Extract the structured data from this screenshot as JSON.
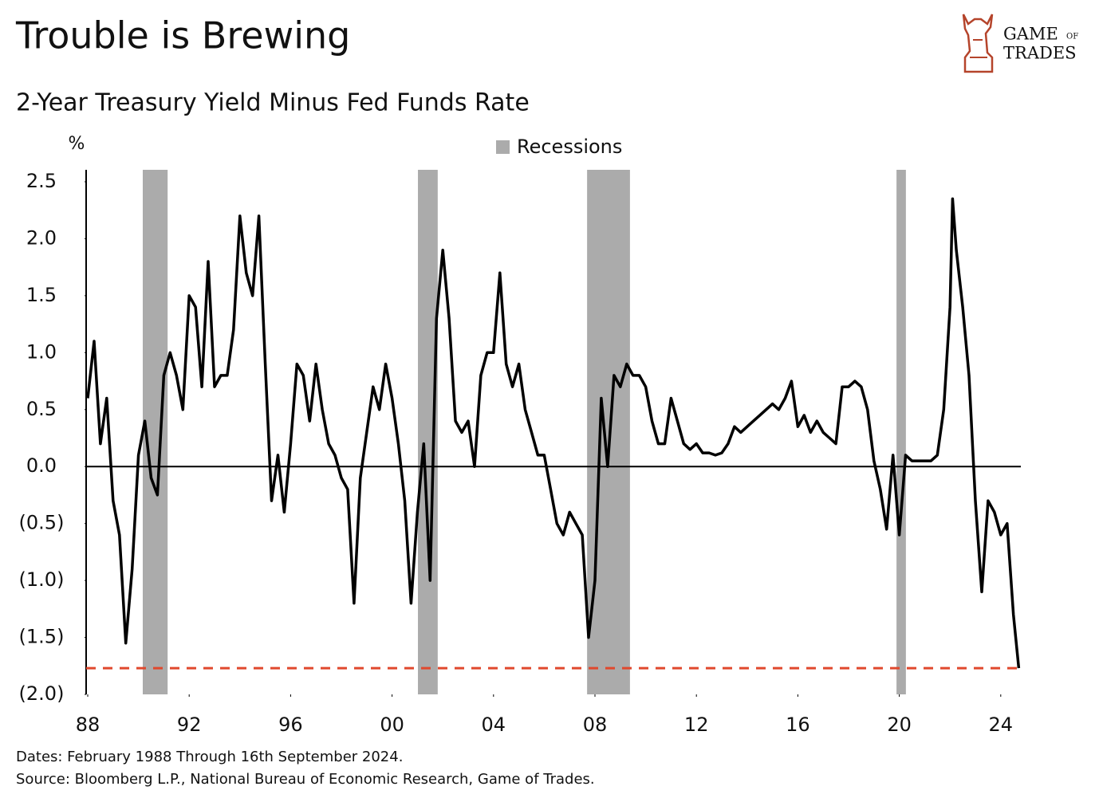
{
  "chart_data": {
    "type": "line",
    "title": "Trouble is Brewing",
    "subtitle": "2-Year Treasury Yield Minus Fed Funds Rate",
    "y_unit": "%",
    "legend": "Recessions",
    "recession_color": "#ababab",
    "recessions": [
      [
        1990.17,
        1991.15
      ],
      [
        2001.02,
        2001.8
      ],
      [
        2007.69,
        2009.38
      ],
      [
        2019.89,
        2020.26
      ]
    ],
    "reference_line": {
      "value": -1.77,
      "color": "#e0482d"
    },
    "notes": [
      "Dates: February 1988 Through 16th September 2024.",
      "Source: Bloomberg L.P., National Bureau of Economic Research, Game of Trades."
    ],
    "logo": [
      "GAME",
      "OF",
      "TRADES"
    ],
    "xlim": [
      1988,
      2025
    ],
    "xticks": [
      {
        "value": 1988,
        "label": "88"
      },
      {
        "value": 1992,
        "label": "92"
      },
      {
        "value": 1996,
        "label": "96"
      },
      {
        "value": 2000,
        "label": "00"
      },
      {
        "value": 2004,
        "label": "04"
      },
      {
        "value": 2008,
        "label": "08"
      },
      {
        "value": 2012,
        "label": "12"
      },
      {
        "value": 2016,
        "label": "16"
      },
      {
        "value": 2020,
        "label": "20"
      },
      {
        "value": 2024,
        "label": "24"
      }
    ],
    "ylim": [
      -2.0,
      2.5
    ],
    "yticks": [
      {
        "value": 2.5,
        "label": "2.5"
      },
      {
        "value": 2.0,
        "label": "2.0"
      },
      {
        "value": 1.5,
        "label": "1.5"
      },
      {
        "value": 1.0,
        "label": "1.0"
      },
      {
        "value": 0.5,
        "label": "0.5"
      },
      {
        "value": 0.0,
        "label": "0.0"
      },
      {
        "value": -0.5,
        "label": "(0.5)"
      },
      {
        "value": -1.0,
        "label": "(1.0)"
      },
      {
        "value": -1.5,
        "label": "(1.5)"
      },
      {
        "value": -2.0,
        "label": "(2.0)"
      }
    ],
    "x": [
      1988.0,
      1988.25,
      1988.5,
      1988.75,
      1989.0,
      1989.25,
      1989.5,
      1989.75,
      1990.0,
      1990.25,
      1990.5,
      1990.75,
      1991.0,
      1991.25,
      1991.5,
      1991.75,
      1992.0,
      1992.25,
      1992.5,
      1992.75,
      1993.0,
      1993.25,
      1993.5,
      1993.75,
      1994.0,
      1994.25,
      1994.5,
      1994.75,
      1995.0,
      1995.25,
      1995.5,
      1995.75,
      1996.0,
      1996.25,
      1996.5,
      1996.75,
      1997.0,
      1997.25,
      1997.5,
      1997.75,
      1998.0,
      1998.25,
      1998.5,
      1998.75,
      1999.0,
      1999.25,
      1999.5,
      1999.75,
      2000.0,
      2000.25,
      2000.5,
      2000.75,
      2001.0,
      2001.25,
      2001.5,
      2001.75,
      2002.0,
      2002.25,
      2002.5,
      2002.75,
      2003.0,
      2003.25,
      2003.5,
      2003.75,
      2004.0,
      2004.25,
      2004.5,
      2004.75,
      2005.0,
      2005.25,
      2005.5,
      2005.75,
      2006.0,
      2006.25,
      2006.5,
      2006.75,
      2007.0,
      2007.25,
      2007.5,
      2007.75,
      2008.0,
      2008.25,
      2008.5,
      2008.75,
      2009.0,
      2009.25,
      2009.5,
      2009.75,
      2010.0,
      2010.25,
      2010.5,
      2010.75,
      2011.0,
      2011.25,
      2011.5,
      2011.75,
      2012.0,
      2012.25,
      2012.5,
      2012.75,
      2013.0,
      2013.25,
      2013.5,
      2013.75,
      2014.0,
      2014.25,
      2014.5,
      2014.75,
      2015.0,
      2015.25,
      2015.5,
      2015.75,
      2016.0,
      2016.25,
      2016.5,
      2016.75,
      2017.0,
      2017.25,
      2017.5,
      2017.75,
      2018.0,
      2018.25,
      2018.5,
      2018.75,
      2019.0,
      2019.25,
      2019.5,
      2019.75,
      2020.0,
      2020.25,
      2020.5,
      2020.75,
      2021.0,
      2021.25,
      2021.5,
      2021.75,
      2022.0,
      2022.1,
      2022.25,
      2022.5,
      2022.75,
      2023.0,
      2023.25,
      2023.5,
      2023.75,
      2024.0,
      2024.25,
      2024.5,
      2024.71
    ],
    "series": [
      {
        "color": "#000000",
        "values": [
          0.6,
          1.1,
          0.2,
          0.6,
          -0.3,
          -0.6,
          -1.55,
          -0.9,
          0.1,
          0.4,
          -0.1,
          -0.25,
          0.8,
          1.0,
          0.8,
          0.5,
          1.5,
          1.4,
          0.7,
          1.8,
          0.7,
          0.8,
          0.8,
          1.2,
          2.2,
          1.7,
          1.5,
          2.2,
          0.9,
          -0.3,
          0.1,
          -0.4,
          0.2,
          0.9,
          0.8,
          0.4,
          0.9,
          0.5,
          0.2,
          0.1,
          -0.1,
          -0.2,
          -1.2,
          -0.1,
          0.3,
          0.7,
          0.5,
          0.9,
          0.6,
          0.2,
          -0.3,
          -1.2,
          -0.4,
          0.2,
          -1.0,
          1.3,
          1.9,
          1.3,
          0.4,
          0.3,
          0.4,
          0.0,
          0.8,
          1.0,
          1.0,
          1.7,
          0.9,
          0.7,
          0.9,
          0.5,
          0.3,
          0.1,
          0.1,
          -0.2,
          -0.5,
          -0.6,
          -0.4,
          -0.5,
          -0.6,
          -1.5,
          -1.0,
          0.6,
          0.0,
          0.8,
          0.7,
          0.9,
          0.8,
          0.8,
          0.7,
          0.4,
          0.2,
          0.2,
          0.6,
          0.4,
          0.2,
          0.15,
          0.2,
          0.12,
          0.12,
          0.1,
          0.12,
          0.2,
          0.35,
          0.3,
          0.35,
          0.4,
          0.45,
          0.5,
          0.55,
          0.5,
          0.6,
          0.75,
          0.35,
          0.45,
          0.3,
          0.4,
          0.3,
          0.25,
          0.2,
          0.7,
          0.7,
          0.75,
          0.7,
          0.5,
          0.05,
          -0.2,
          -0.55,
          0.1,
          -0.6,
          0.1,
          0.05,
          0.05,
          0.05,
          0.05,
          0.1,
          0.5,
          1.4,
          2.35,
          1.9,
          1.4,
          0.8,
          -0.3,
          -1.1,
          -0.3,
          -0.4,
          -0.6,
          -0.5,
          -1.3,
          -1.77
        ]
      }
    ]
  }
}
